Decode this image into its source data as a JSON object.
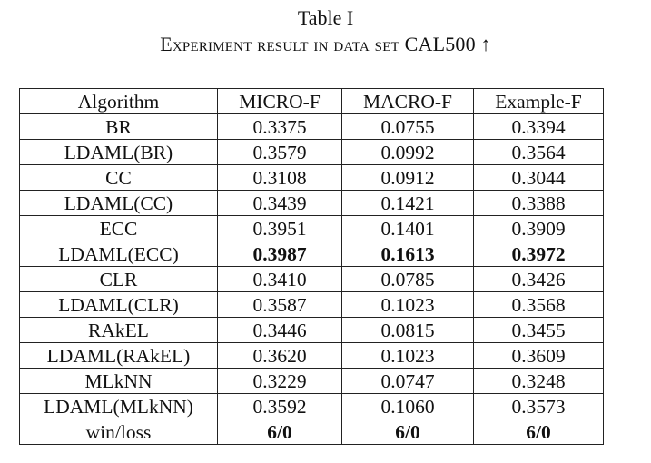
{
  "caption": {
    "label": "Table I",
    "title": "Experiment result in data set CAL500 ↑"
  },
  "table": {
    "headers": [
      "Algorithm",
      "MICRO-F",
      "MACRO-F",
      "Example-F"
    ],
    "rows": [
      {
        "algorithm": "BR",
        "micro_f": "0.3375",
        "macro_f": "0.0755",
        "example_f": "0.3394"
      },
      {
        "algorithm": "LDAML(BR)",
        "micro_f": "0.3579",
        "macro_f": "0.0992",
        "example_f": "0.3564"
      },
      {
        "algorithm": "CC",
        "micro_f": "0.3108",
        "macro_f": "0.0912",
        "example_f": "0.3044"
      },
      {
        "algorithm": "LDAML(CC)",
        "micro_f": "0.3439",
        "macro_f": "0.1421",
        "example_f": "0.3388"
      },
      {
        "algorithm": "ECC",
        "micro_f": "0.3951",
        "macro_f": "0.1401",
        "example_f": "0.3909"
      },
      {
        "algorithm": "LDAML(ECC)",
        "micro_f": "0.3987",
        "macro_f": "0.1613",
        "example_f": "0.3972",
        "bold_values": true
      },
      {
        "algorithm": "CLR",
        "micro_f": "0.3410",
        "macro_f": "0.0785",
        "example_f": "0.3426"
      },
      {
        "algorithm": "LDAML(CLR)",
        "micro_f": "0.3587",
        "macro_f": "0.1023",
        "example_f": "0.3568"
      },
      {
        "algorithm": "RAkEL",
        "micro_f": "0.3446",
        "macro_f": "0.0815",
        "example_f": "0.3455"
      },
      {
        "algorithm": "LDAML(RAkEL)",
        "micro_f": "0.3620",
        "macro_f": "0.1023",
        "example_f": "0.3609"
      },
      {
        "algorithm": "MLkNN",
        "micro_f": "0.3229",
        "macro_f": "0.0747",
        "example_f": "0.3248"
      },
      {
        "algorithm": "LDAML(MLkNN)",
        "micro_f": "0.3592",
        "macro_f": "0.1060",
        "example_f": "0.3573"
      }
    ],
    "summary": {
      "label": "win/loss",
      "micro_f": "6/0",
      "macro_f": "6/0",
      "example_f": "6/0"
    }
  }
}
